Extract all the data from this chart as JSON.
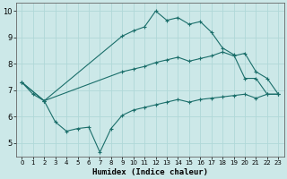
{
  "xlabel": "Humidex (Indice chaleur)",
  "bg_color": "#cce8e8",
  "line_color": "#1a6e6a",
  "grid_color": "#b0d8d8",
  "xlim": [
    -0.5,
    23.5
  ],
  "ylim": [
    4.5,
    10.3
  ],
  "yticks": [
    5,
    6,
    7,
    8,
    9,
    10
  ],
  "xticks": [
    0,
    1,
    2,
    3,
    4,
    5,
    6,
    7,
    8,
    9,
    10,
    11,
    12,
    13,
    14,
    15,
    16,
    17,
    18,
    19,
    20,
    21,
    22,
    23
  ],
  "line1_x": [
    0,
    1,
    2,
    9,
    10,
    11,
    12,
    13,
    14,
    15,
    16,
    17,
    18,
    19,
    20,
    21,
    22,
    23
  ],
  "line1_y": [
    7.3,
    6.85,
    6.6,
    9.05,
    9.25,
    9.4,
    10.0,
    9.65,
    9.75,
    9.5,
    9.6,
    9.2,
    8.6,
    8.35,
    7.45,
    7.45,
    6.85,
    6.85
  ],
  "line2_x": [
    0,
    2,
    9,
    10,
    11,
    12,
    13,
    14,
    15,
    16,
    17,
    18,
    19,
    20,
    21,
    22,
    23
  ],
  "line2_y": [
    7.3,
    6.6,
    7.7,
    7.8,
    7.9,
    8.05,
    8.15,
    8.25,
    8.1,
    8.2,
    8.3,
    8.45,
    8.3,
    8.4,
    7.7,
    7.45,
    6.85
  ],
  "line3_x": [
    0,
    2,
    3,
    4,
    5,
    6,
    7,
    8,
    9,
    10,
    11,
    12,
    13,
    14,
    15,
    16,
    17,
    18,
    19,
    20,
    21,
    22,
    23
  ],
  "line3_y": [
    7.3,
    6.6,
    5.8,
    5.45,
    5.55,
    5.6,
    4.65,
    5.55,
    6.05,
    6.25,
    6.35,
    6.45,
    6.55,
    6.65,
    6.55,
    6.65,
    6.7,
    6.75,
    6.8,
    6.85,
    6.7,
    6.85,
    6.85
  ]
}
